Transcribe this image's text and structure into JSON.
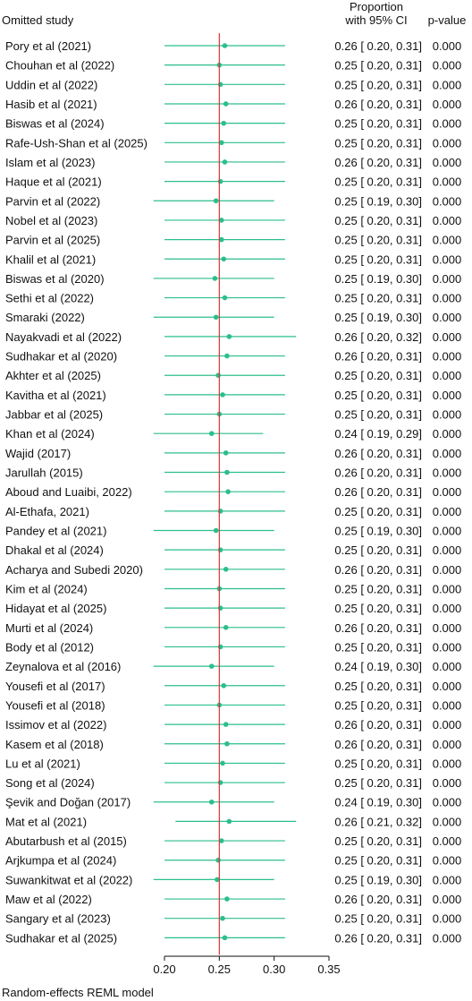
{
  "chart_data": {
    "type": "forest",
    "headers": {
      "study": "Omitted study",
      "ci_line1": "Proportion",
      "ci_line2": "with 95% CI",
      "pvalue": "p-value"
    },
    "footer": "Random-effects REML model",
    "reference_line": 0.25,
    "xlim": [
      0.2,
      0.35
    ],
    "x_ticks": [
      0.2,
      0.25,
      0.3,
      0.35
    ],
    "x_tick_labels": [
      "0.20",
      "0.25",
      "0.30",
      "0.35"
    ],
    "colors": {
      "marker": "#2bbf8a",
      "reference": "#d9343a",
      "axis": "#111111"
    },
    "studies": [
      {
        "name": "Pory et al (2021)",
        "est": 0.255,
        "lo": 0.2,
        "hi": 0.31,
        "ci_text": "0.26 [ 0.20, 0.31]",
        "p": "0.000"
      },
      {
        "name": "Chouhan et al (2022)",
        "est": 0.25,
        "lo": 0.2,
        "hi": 0.31,
        "ci_text": "0.25 [ 0.20, 0.31]",
        "p": "0.000"
      },
      {
        "name": "Uddin et al (2022)",
        "est": 0.251,
        "lo": 0.2,
        "hi": 0.31,
        "ci_text": "0.25 [ 0.20, 0.31]",
        "p": "0.000"
      },
      {
        "name": "Hasib et al (2021)",
        "est": 0.256,
        "lo": 0.2,
        "hi": 0.31,
        "ci_text": "0.26 [ 0.20, 0.31]",
        "p": "0.000"
      },
      {
        "name": "Biswas et al (2024)",
        "est": 0.254,
        "lo": 0.2,
        "hi": 0.31,
        "ci_text": "0.25 [ 0.20, 0.31]",
        "p": "0.000"
      },
      {
        "name": "Rafe-Ush-Shan et al (2025)",
        "est": 0.252,
        "lo": 0.2,
        "hi": 0.31,
        "ci_text": "0.25 [ 0.20, 0.31]",
        "p": "0.000"
      },
      {
        "name": "Islam et al (2023)",
        "est": 0.255,
        "lo": 0.2,
        "hi": 0.31,
        "ci_text": "0.26 [ 0.20, 0.31]",
        "p": "0.000"
      },
      {
        "name": "Haque et al (2021)",
        "est": 0.251,
        "lo": 0.2,
        "hi": 0.31,
        "ci_text": "0.25 [ 0.20, 0.31]",
        "p": "0.000"
      },
      {
        "name": "Parvin et al (2022)",
        "est": 0.247,
        "lo": 0.19,
        "hi": 0.3,
        "ci_text": "0.25 [ 0.19, 0.30]",
        "p": "0.000"
      },
      {
        "name": "Nobel et al (2023)",
        "est": 0.252,
        "lo": 0.2,
        "hi": 0.31,
        "ci_text": "0.25 [ 0.20, 0.31]",
        "p": "0.000"
      },
      {
        "name": "Parvin et al (2025)",
        "est": 0.252,
        "lo": 0.2,
        "hi": 0.31,
        "ci_text": "0.25 [ 0.20, 0.31]",
        "p": "0.000"
      },
      {
        "name": "Khalil et al (2021)",
        "est": 0.254,
        "lo": 0.2,
        "hi": 0.31,
        "ci_text": "0.25 [ 0.20, 0.31]",
        "p": "0.000"
      },
      {
        "name": "Biswas et al (2020)",
        "est": 0.246,
        "lo": 0.19,
        "hi": 0.3,
        "ci_text": "0.25 [ 0.19, 0.30]",
        "p": "0.000"
      },
      {
        "name": "Sethi et al (2022)",
        "est": 0.255,
        "lo": 0.2,
        "hi": 0.31,
        "ci_text": "0.25 [ 0.20, 0.31]",
        "p": "0.000"
      },
      {
        "name": "Smaraki (2022)",
        "est": 0.247,
        "lo": 0.19,
        "hi": 0.3,
        "ci_text": "0.25 [ 0.19, 0.30]",
        "p": "0.000"
      },
      {
        "name": "Nayakvadi et al (2022)",
        "est": 0.259,
        "lo": 0.2,
        "hi": 0.32,
        "ci_text": "0.26 [ 0.20, 0.32]",
        "p": "0.000"
      },
      {
        "name": "Sudhakar et al (2020)",
        "est": 0.257,
        "lo": 0.2,
        "hi": 0.31,
        "ci_text": "0.26 [ 0.20, 0.31]",
        "p": "0.000"
      },
      {
        "name": "Akhter et al (2025)",
        "est": 0.249,
        "lo": 0.2,
        "hi": 0.31,
        "ci_text": "0.25 [ 0.20, 0.31]",
        "p": "0.000"
      },
      {
        "name": "Kavitha et al (2021)",
        "est": 0.253,
        "lo": 0.2,
        "hi": 0.31,
        "ci_text": "0.25 [ 0.20, 0.31]",
        "p": "0.000"
      },
      {
        "name": "Jabbar et al (2025)",
        "est": 0.25,
        "lo": 0.2,
        "hi": 0.31,
        "ci_text": "0.25 [ 0.20, 0.31]",
        "p": "0.000"
      },
      {
        "name": "Khan et al (2024)",
        "est": 0.243,
        "lo": 0.19,
        "hi": 0.29,
        "ci_text": "0.24 [ 0.19, 0.29]",
        "p": "0.000"
      },
      {
        "name": "Wajid (2017)",
        "est": 0.256,
        "lo": 0.2,
        "hi": 0.31,
        "ci_text": "0.26 [ 0.20, 0.31]",
        "p": "0.000"
      },
      {
        "name": "Jarullah (2015)",
        "est": 0.257,
        "lo": 0.2,
        "hi": 0.31,
        "ci_text": "0.26 [ 0.20, 0.31]",
        "p": "0.000"
      },
      {
        "name": "Aboud and Luaibi, 2022)",
        "est": 0.258,
        "lo": 0.2,
        "hi": 0.31,
        "ci_text": "0.26 [ 0.20, 0.31]",
        "p": "0.000"
      },
      {
        "name": "Al-Ethafa, 2021)",
        "est": 0.251,
        "lo": 0.2,
        "hi": 0.31,
        "ci_text": "0.25 [ 0.20, 0.31]",
        "p": "0.000"
      },
      {
        "name": "Pandey et al (2021)",
        "est": 0.247,
        "lo": 0.19,
        "hi": 0.3,
        "ci_text": "0.25 [ 0.19, 0.30]",
        "p": "0.000"
      },
      {
        "name": "Dhakal et al (2024)",
        "est": 0.251,
        "lo": 0.2,
        "hi": 0.31,
        "ci_text": "0.25 [ 0.20, 0.31]",
        "p": "0.000"
      },
      {
        "name": "Acharya and Subedi 2020)",
        "est": 0.256,
        "lo": 0.2,
        "hi": 0.31,
        "ci_text": "0.26 [ 0.20, 0.31]",
        "p": "0.000"
      },
      {
        "name": "Kim et al (2024)",
        "est": 0.25,
        "lo": 0.2,
        "hi": 0.31,
        "ci_text": "0.25 [ 0.20, 0.31]",
        "p": "0.000"
      },
      {
        "name": "Hidayat et al (2025)",
        "est": 0.251,
        "lo": 0.2,
        "hi": 0.31,
        "ci_text": "0.25 [ 0.20, 0.31]",
        "p": "0.000"
      },
      {
        "name": "Murti et al (2024)",
        "est": 0.256,
        "lo": 0.2,
        "hi": 0.31,
        "ci_text": "0.26 [ 0.20, 0.31]",
        "p": "0.000"
      },
      {
        "name": "Body et al (2012)",
        "est": 0.251,
        "lo": 0.2,
        "hi": 0.31,
        "ci_text": "0.25 [ 0.20, 0.31]",
        "p": "0.000"
      },
      {
        "name": "Zeynalova et al (2016)",
        "est": 0.243,
        "lo": 0.19,
        "hi": 0.3,
        "ci_text": "0.24 [ 0.19, 0.30]",
        "p": "0.000"
      },
      {
        "name": "Yousefi et al (2017)",
        "est": 0.254,
        "lo": 0.2,
        "hi": 0.31,
        "ci_text": "0.25 [ 0.20, 0.31]",
        "p": "0.000"
      },
      {
        "name": "Yousefi et al (2018)",
        "est": 0.25,
        "lo": 0.2,
        "hi": 0.31,
        "ci_text": "0.25 [ 0.20, 0.31]",
        "p": "0.000"
      },
      {
        "name": "Issimov et al (2022)",
        "est": 0.256,
        "lo": 0.2,
        "hi": 0.31,
        "ci_text": "0.26 [ 0.20, 0.31]",
        "p": "0.000"
      },
      {
        "name": "Kasem et al (2018)",
        "est": 0.257,
        "lo": 0.2,
        "hi": 0.31,
        "ci_text": "0.26 [ 0.20, 0.31]",
        "p": "0.000"
      },
      {
        "name": "Lu et al (2021)",
        "est": 0.253,
        "lo": 0.2,
        "hi": 0.31,
        "ci_text": "0.25 [ 0.20, 0.31]",
        "p": "0.000"
      },
      {
        "name": "Song et al (2024)",
        "est": 0.251,
        "lo": 0.2,
        "hi": 0.31,
        "ci_text": "0.25 [ 0.20, 0.31]",
        "p": "0.000"
      },
      {
        "name": "Şevik and Doğan (2017)",
        "est": 0.243,
        "lo": 0.19,
        "hi": 0.3,
        "ci_text": "0.24 [ 0.19, 0.30]",
        "p": "0.000"
      },
      {
        "name": "Mat et al (2021)",
        "est": 0.259,
        "lo": 0.21,
        "hi": 0.32,
        "ci_text": "0.26 [ 0.21, 0.32]",
        "p": "0.000"
      },
      {
        "name": "Abutarbush et al (2015)",
        "est": 0.252,
        "lo": 0.2,
        "hi": 0.31,
        "ci_text": "0.25 [ 0.20, 0.31]",
        "p": "0.000"
      },
      {
        "name": "Arjkumpa et al (2024)",
        "est": 0.249,
        "lo": 0.2,
        "hi": 0.31,
        "ci_text": "0.25 [ 0.20, 0.31]",
        "p": "0.000"
      },
      {
        "name": "Suwankitwat et al (2022)",
        "est": 0.248,
        "lo": 0.19,
        "hi": 0.3,
        "ci_text": "0.25 [ 0.19, 0.30]",
        "p": "0.000"
      },
      {
        "name": "Maw et al (2022)",
        "est": 0.257,
        "lo": 0.2,
        "hi": 0.31,
        "ci_text": "0.26 [ 0.20, 0.31]",
        "p": "0.000"
      },
      {
        "name": "Sangary et al (2023)",
        "est": 0.253,
        "lo": 0.2,
        "hi": 0.31,
        "ci_text": "0.25 [ 0.20, 0.31]",
        "p": "0.000"
      },
      {
        "name": "Sudhakar et al (2025)",
        "est": 0.255,
        "lo": 0.2,
        "hi": 0.31,
        "ci_text": "0.26 [ 0.20, 0.31]",
        "p": "0.000"
      }
    ]
  }
}
